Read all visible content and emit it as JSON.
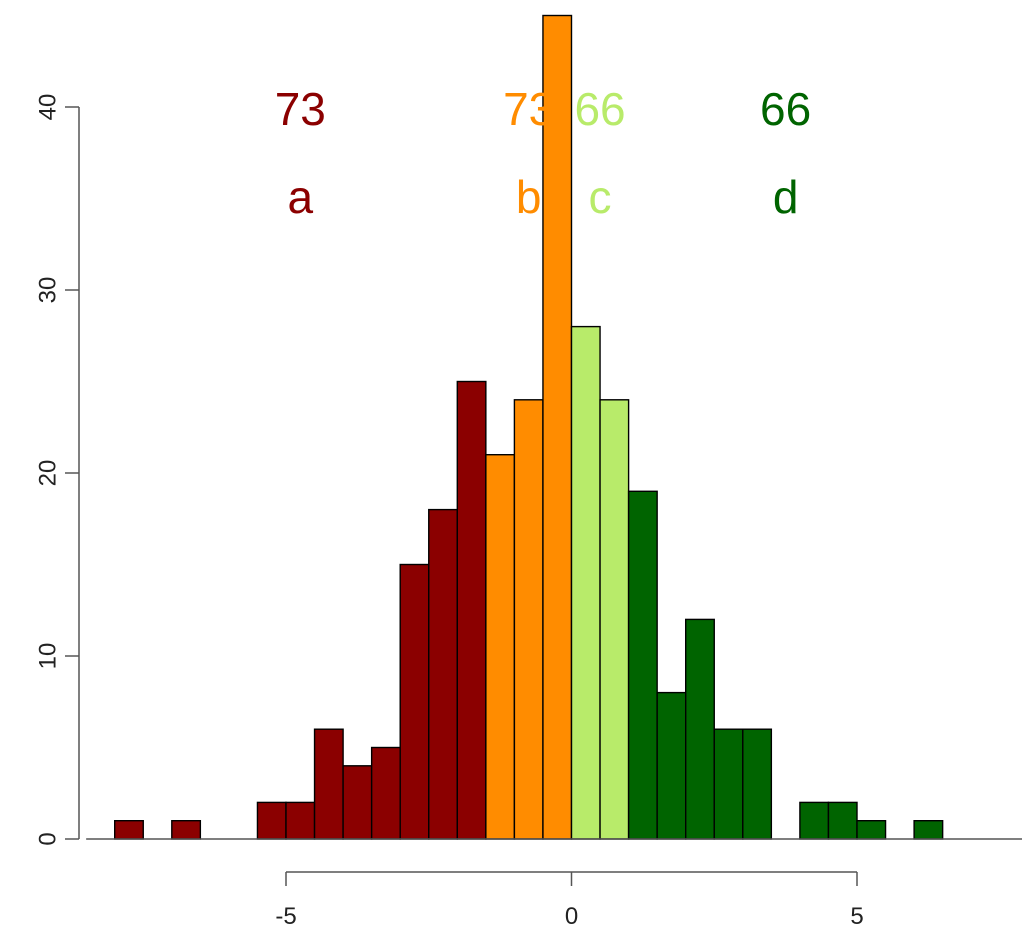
{
  "chart_data": {
    "type": "bar",
    "bin_width": 0.5,
    "bins": [
      {
        "x_start": -8.0,
        "count": 1,
        "group": "a"
      },
      {
        "x_start": -7.5,
        "count": 0,
        "group": "a"
      },
      {
        "x_start": -7.0,
        "count": 1,
        "group": "a"
      },
      {
        "x_start": -6.5,
        "count": 0,
        "group": "a"
      },
      {
        "x_start": -6.0,
        "count": 0,
        "group": "a"
      },
      {
        "x_start": -5.5,
        "count": 2,
        "group": "a"
      },
      {
        "x_start": -5.0,
        "count": 2,
        "group": "a"
      },
      {
        "x_start": -4.5,
        "count": 6,
        "group": "a"
      },
      {
        "x_start": -4.0,
        "count": 4,
        "group": "a"
      },
      {
        "x_start": -3.5,
        "count": 5,
        "group": "a"
      },
      {
        "x_start": -3.0,
        "count": 15,
        "group": "a"
      },
      {
        "x_start": -2.5,
        "count": 18,
        "group": "a"
      },
      {
        "x_start": -2.0,
        "count": 25,
        "group": "a"
      },
      {
        "x_start": -1.5,
        "count": 21,
        "group": "b"
      },
      {
        "x_start": -1.0,
        "count": 24,
        "group": "b"
      },
      {
        "x_start": -0.5,
        "count": 45,
        "group": "b"
      },
      {
        "x_start": 0.0,
        "count": 28,
        "group": "c"
      },
      {
        "x_start": 0.5,
        "count": 24,
        "group": "c"
      },
      {
        "x_start": 1.0,
        "count": 19,
        "group": "d"
      },
      {
        "x_start": 1.5,
        "count": 8,
        "group": "d"
      },
      {
        "x_start": 2.0,
        "count": 12,
        "group": "d"
      },
      {
        "x_start": 2.5,
        "count": 6,
        "group": "d"
      },
      {
        "x_start": 3.0,
        "count": 6,
        "group": "d"
      },
      {
        "x_start": 3.5,
        "count": 0,
        "group": "d"
      },
      {
        "x_start": 4.0,
        "count": 2,
        "group": "d"
      },
      {
        "x_start": 4.5,
        "count": 2,
        "group": "d"
      },
      {
        "x_start": 5.0,
        "count": 1,
        "group": "d"
      },
      {
        "x_start": 5.5,
        "count": 0,
        "group": "d"
      },
      {
        "x_start": 6.0,
        "count": 1,
        "group": "d"
      }
    ],
    "groups": [
      {
        "id": "a",
        "label": "a",
        "count_label": "73",
        "color": "#8b0000"
      },
      {
        "id": "b",
        "label": "b",
        "count_label": "73",
        "color": "#ff8c00"
      },
      {
        "id": "c",
        "label": "c",
        "count_label": "66",
        "color": "#b8eb6a"
      },
      {
        "id": "d",
        "label": "d",
        "count_label": "66",
        "color": "#006400"
      }
    ],
    "x_ticks": [
      "-5",
      "0",
      "5"
    ],
    "x_tick_values": [
      -5,
      0,
      5
    ],
    "y_ticks": [
      "0",
      "10",
      "20",
      "30",
      "40"
    ],
    "y_tick_values": [
      0,
      10,
      20,
      30,
      40
    ],
    "xlim": [
      -8.5,
      8
    ],
    "ylim": [
      0,
      45
    ],
    "title": "",
    "xlabel": "",
    "ylabel": "",
    "grid": false,
    "legend": "none"
  }
}
